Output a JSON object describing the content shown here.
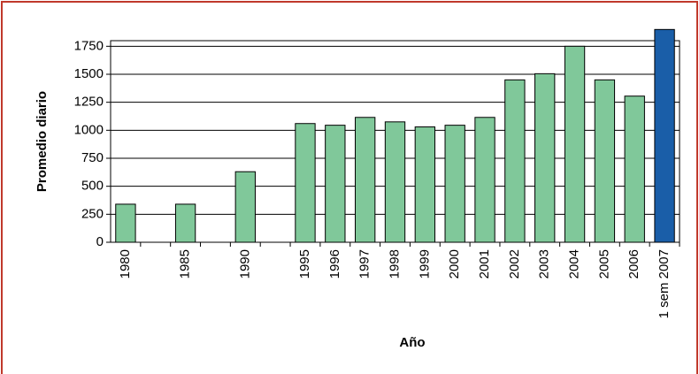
{
  "chart_data": {
    "type": "bar",
    "y_label": "Promedio diario",
    "x_label": "Año",
    "categories": [
      "1980",
      null,
      "1985",
      null,
      "1990",
      null,
      "1995",
      "1996",
      "1997",
      "1998",
      "1999",
      "2000",
      "2001",
      "2002",
      "2003",
      "2004",
      "2005",
      "2006",
      "1 sem 2007"
    ],
    "values": [
      340,
      null,
      340,
      null,
      630,
      null,
      1060,
      1045,
      1115,
      1075,
      1030,
      1045,
      1115,
      1450,
      1505,
      1750,
      1450,
      1305,
      1900
    ],
    "colors": [
      "#80c89a",
      null,
      "#80c89a",
      null,
      "#80c89a",
      null,
      "#80c89a",
      "#80c89a",
      "#80c89a",
      "#80c89a",
      "#80c89a",
      "#80c89a",
      "#80c89a",
      "#80c89a",
      "#80c89a",
      "#80c89a",
      "#80c89a",
      "#80c89a",
      "#1a5ea8"
    ],
    "ylim": [
      0,
      1800
    ],
    "yticks": [
      0,
      250,
      500,
      750,
      1000,
      1250,
      1500,
      1750
    ],
    "grid": true
  }
}
